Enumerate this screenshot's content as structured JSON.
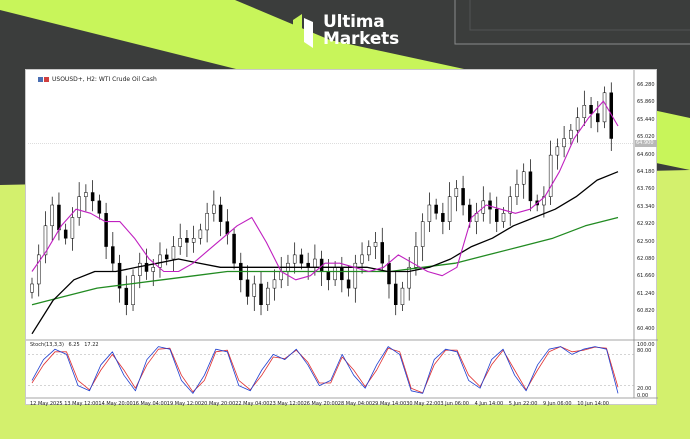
{
  "brand": {
    "name_line1": "Ultima",
    "name_line2": "Markets",
    "accent_color": "#c8f55a",
    "logo_icon": "ultima-markets-logo-icon"
  },
  "chart_header": {
    "symbol_text": "USOUSD+, H2: WTI Crude Oil Cash"
  },
  "stochastic_header": {
    "name": "Stoch(13,3,3)",
    "value1": "6.25",
    "value2": "17.22"
  },
  "price_axis": {
    "ticks": [
      "66.280",
      "65.860",
      "65.440",
      "65.020",
      "64.600",
      "64.180",
      "63.760",
      "63.340",
      "62.920",
      "62.500",
      "62.080",
      "61.660",
      "61.240",
      "60.820",
      "60.400"
    ],
    "current_price_label": "64.900"
  },
  "stoch_axis": {
    "ticks": [
      "100.00",
      "80.00",
      "20.00",
      "0.00"
    ]
  },
  "time_axis": {
    "ticks": [
      "12 May 2025",
      "13 May 12:00",
      "14 May 20:00",
      "16 May 04:00",
      "19 May 12:00",
      "20 May 20:00",
      "22 May 04:00",
      "23 May 12:00",
      "26 May 20:00",
      "28 May 04:00",
      "29 May 14:00",
      "30 May 22:00",
      "3 Jun 06:00",
      "4 Jun 14:00",
      "5 Jun 22:00",
      "9 Jun 06:00",
      "10 Jun 14:00"
    ]
  },
  "chart_data": {
    "type": "candlestick",
    "title": "USOUSD+, H2: WTI Crude Oil Cash",
    "ylim": [
      60.2,
      66.6
    ],
    "indicators": [
      "MA fast (purple)",
      "MA medium (black)",
      "MA slow (green)",
      "Stochastic (13,3,3)"
    ],
    "series_colors": {
      "candles": "#000000",
      "ma_fast": "#c020c0",
      "ma_mid": "#000000",
      "ma_slow": "#228b22",
      "stoch_main": "#2040d0",
      "stoch_signal": "#e03030"
    },
    "close_series": [
      61.5,
      62.2,
      62.9,
      63.4,
      62.8,
      62.6,
      63.1,
      63.6,
      63.7,
      63.5,
      63.2,
      62.4,
      62.0,
      61.4,
      61.0,
      61.7,
      62.0,
      61.8,
      61.9,
      62.2,
      62.1,
      62.4,
      62.6,
      62.5,
      62.6,
      62.8,
      63.2,
      63.4,
      63.0,
      62.7,
      62.0,
      61.6,
      61.2,
      61.5,
      61.0,
      61.4,
      61.6,
      61.8,
      62.0,
      62.2,
      62.0,
      61.9,
      62.1,
      61.8,
      61.6,
      61.9,
      61.6,
      61.4,
      62.0,
      62.2,
      62.4,
      62.5,
      62.0,
      61.5,
      61.0,
      61.4,
      61.9,
      62.4,
      63.0,
      63.4,
      63.2,
      63.0,
      63.6,
      63.8,
      63.4,
      63.0,
      63.2,
      63.5,
      63.3,
      63.0,
      63.2,
      63.6,
      63.9,
      64.2,
      63.5,
      63.4,
      63.6,
      64.6,
      64.8,
      65.0,
      65.2,
      65.5,
      65.8,
      65.6,
      65.4,
      66.1,
      65.0
    ],
    "ma_fast_series": [
      61.8,
      62.3,
      62.9,
      63.3,
      63.2,
      63.0,
      63.0,
      62.6,
      62.1,
      61.8,
      61.8,
      62.0,
      62.3,
      62.6,
      62.9,
      63.1,
      62.5,
      61.8,
      61.6,
      61.7,
      62.0,
      62.0,
      61.9,
      61.8,
      61.9,
      62.2,
      62.0,
      61.8,
      61.7,
      61.9,
      63.1,
      63.4,
      63.3,
      63.2,
      63.3,
      63.6,
      64.2,
      65.0,
      65.5,
      65.9,
      65.3
    ],
    "ma_mid_series": [
      60.3,
      61.1,
      61.6,
      61.8,
      61.8,
      61.9,
      62.0,
      62.1,
      62.0,
      61.9,
      61.9,
      61.9,
      61.9,
      61.9,
      61.9,
      61.9,
      61.9,
      61.8,
      61.8,
      61.9,
      62.1,
      62.4,
      62.6,
      62.9,
      63.1,
      63.3,
      63.6,
      64.0,
      64.2
    ],
    "ma_slow_series": [
      61.0,
      61.2,
      61.4,
      61.5,
      61.6,
      61.7,
      61.8,
      61.8,
      61.8,
      61.8,
      61.8,
      61.8,
      61.9,
      62.0,
      62.2,
      62.4,
      62.6,
      62.9,
      63.1
    ],
    "stoch_range": [
      0,
      100
    ],
    "stoch_levels": [
      80,
      20
    ],
    "stoch_main": [
      30,
      70,
      90,
      80,
      20,
      10,
      60,
      85,
      40,
      10,
      70,
      95,
      90,
      30,
      5,
      40,
      90,
      85,
      20,
      10,
      50,
      80,
      70,
      90,
      60,
      20,
      30,
      80,
      40,
      15,
      60,
      95,
      80,
      10,
      5,
      70,
      90,
      85,
      30,
      15,
      70,
      90,
      40,
      10,
      60,
      90,
      95,
      80,
      90,
      95,
      90,
      5
    ],
    "stoch_signal": [
      25,
      60,
      85,
      85,
      30,
      12,
      50,
      80,
      50,
      15,
      60,
      90,
      92,
      40,
      8,
      30,
      85,
      88,
      30,
      12,
      40,
      75,
      72,
      88,
      65,
      25,
      25,
      75,
      50,
      18,
      50,
      92,
      85,
      15,
      6,
      60,
      88,
      88,
      40,
      18,
      60,
      88,
      50,
      12,
      50,
      85,
      95,
      85,
      88,
      94,
      92,
      17
    ]
  }
}
